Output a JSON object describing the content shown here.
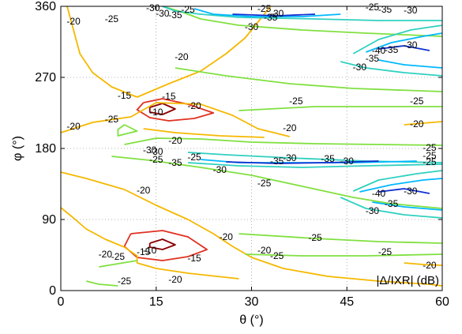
{
  "chart_data": {
    "type": "contour",
    "xlabel": "θ (°)",
    "ylabel": "φ (°)",
    "annotation": "|Δ/IXR| (dB)",
    "xlim": [
      0,
      60
    ],
    "ylim": [
      0,
      360
    ],
    "xticks": [
      0,
      15,
      30,
      45,
      60
    ],
    "yticks": [
      0,
      90,
      180,
      270,
      360
    ],
    "grid": "dotted",
    "level_colors": {
      "-10": "#8b0000",
      "-15": "#e03020",
      "-20": "#f5b800",
      "-25": "#80e040",
      "-30": "#30d0c0",
      "-35": "#00b8ff",
      "-40": "#1030d0"
    },
    "contours": [
      {
        "level": -10,
        "points": [
          [
            14,
            232
          ],
          [
            16,
            237
          ],
          [
            18,
            230
          ],
          [
            16,
            223
          ],
          [
            14,
            226
          ],
          [
            14,
            232
          ]
        ]
      },
      {
        "level": -10,
        "points": [
          [
            14,
            60
          ],
          [
            16,
            65
          ],
          [
            18,
            58
          ],
          [
            16,
            52
          ],
          [
            14,
            55
          ],
          [
            14,
            60
          ]
        ]
      },
      {
        "level": -15,
        "points": [
          [
            13,
            238
          ],
          [
            16,
            243
          ],
          [
            20,
            236
          ],
          [
            24,
            225
          ],
          [
            21,
            218
          ],
          [
            17,
            215
          ],
          [
            14,
            219
          ],
          [
            12,
            229
          ],
          [
            13,
            238
          ]
        ]
      },
      {
        "level": -15,
        "points": [
          [
            11,
            72
          ],
          [
            16,
            76
          ],
          [
            20,
            68
          ],
          [
            23,
            52
          ],
          [
            20,
            43
          ],
          [
            16,
            38
          ],
          [
            12,
            42
          ],
          [
            10,
            56
          ],
          [
            11,
            72
          ]
        ]
      },
      {
        "level": -20,
        "points": [
          [
            1,
            360
          ],
          [
            2,
            330
          ],
          [
            3,
            300
          ],
          [
            5,
            276
          ],
          [
            8,
            258
          ],
          [
            12,
            245
          ]
        ]
      },
      {
        "level": -20,
        "points": [
          [
            12,
            245
          ],
          [
            17,
            262
          ],
          [
            22,
            278
          ],
          [
            26,
            300
          ],
          [
            29,
            320
          ],
          [
            31,
            340
          ],
          [
            33,
            360
          ]
        ]
      },
      {
        "level": -20,
        "points": [
          [
            0,
            200
          ],
          [
            5,
            213
          ],
          [
            11,
            220
          ],
          [
            15,
            238
          ],
          [
            22,
            236
          ],
          [
            27,
            222
          ],
          [
            31,
            205
          ],
          [
            36,
            195
          ]
        ]
      },
      {
        "level": -20,
        "points": [
          [
            0,
            150
          ],
          [
            4,
            142
          ],
          [
            10,
            128
          ],
          [
            15,
            108
          ],
          [
            20,
            90
          ],
          [
            24,
            72
          ],
          [
            27,
            56
          ],
          [
            30,
            42
          ],
          [
            35,
            28
          ],
          [
            42,
            18
          ],
          [
            50,
            12
          ],
          [
            58,
            8
          ],
          [
            60,
            6
          ]
        ]
      },
      {
        "level": -20,
        "points": [
          [
            0,
            105
          ],
          [
            2,
            92
          ],
          [
            4,
            78
          ],
          [
            7,
            65
          ],
          [
            10,
            55
          ],
          [
            12,
            44
          ],
          [
            12,
            35
          ],
          [
            15,
            28
          ],
          [
            20,
            22
          ],
          [
            28,
            15
          ]
        ]
      },
      {
        "level": -20,
        "points": [
          [
            13,
            205
          ],
          [
            18,
            200
          ],
          [
            25,
            196
          ],
          [
            32,
            194
          ]
        ]
      },
      {
        "level": -20,
        "points": [
          [
            54,
            210
          ],
          [
            57,
            212
          ],
          [
            60,
            214
          ]
        ]
      },
      {
        "level": -20,
        "points": [
          [
            54,
            35
          ],
          [
            57,
            33
          ],
          [
            60,
            32
          ]
        ]
      },
      {
        "level": -25,
        "points": [
          [
            16,
            360
          ],
          [
            19,
            353
          ],
          [
            22,
            344
          ],
          [
            28,
            336
          ],
          [
            38,
            330
          ],
          [
            48,
            326
          ],
          [
            60,
            322
          ]
        ]
      },
      {
        "level": -25,
        "points": [
          [
            18,
            282
          ],
          [
            26,
            272
          ],
          [
            36,
            262
          ],
          [
            46,
            256
          ],
          [
            60,
            252
          ]
        ]
      },
      {
        "level": -25,
        "points": [
          [
            28,
            228
          ],
          [
            40,
            233
          ],
          [
            52,
            233
          ],
          [
            60,
            233
          ]
        ]
      },
      {
        "level": -25,
        "points": [
          [
            10,
            185
          ],
          [
            15,
            193
          ],
          [
            22,
            192
          ],
          [
            30,
            188
          ],
          [
            40,
            186
          ],
          [
            50,
            185
          ],
          [
            60,
            184
          ]
        ]
      },
      {
        "level": -25,
        "points": [
          [
            8,
            170
          ],
          [
            14,
            165
          ],
          [
            22,
            156
          ],
          [
            30,
            146
          ],
          [
            38,
            132
          ],
          [
            46,
            118
          ],
          [
            52,
            110
          ],
          [
            60,
            104
          ]
        ]
      },
      {
        "level": -25,
        "points": [
          [
            10,
            210
          ],
          [
            12,
            202
          ],
          [
            9,
            196
          ],
          [
            9,
            204
          ],
          [
            10,
            210
          ]
        ]
      },
      {
        "level": -25,
        "points": [
          [
            28,
            72
          ],
          [
            40,
            66
          ],
          [
            50,
            62
          ],
          [
            60,
            60
          ]
        ]
      },
      {
        "level": -25,
        "points": [
          [
            29,
            46
          ],
          [
            38,
            44
          ],
          [
            48,
            44
          ],
          [
            60,
            46
          ]
        ]
      },
      {
        "level": -25,
        "points": [
          [
            4,
            12
          ],
          [
            6,
            8
          ],
          [
            9,
            6
          ]
        ]
      },
      {
        "level": -25,
        "points": [
          [
            6,
            30
          ],
          [
            9,
            34
          ],
          [
            12,
            38
          ]
        ]
      },
      {
        "level": -30,
        "points": [
          [
            16,
            360
          ],
          [
            18,
            354
          ],
          [
            22,
            350
          ],
          [
            28,
            346
          ],
          [
            40,
            344
          ],
          [
            50,
            342
          ],
          [
            60,
            342
          ]
        ]
      },
      {
        "level": -30,
        "points": [
          [
            20,
            175
          ],
          [
            26,
            172
          ],
          [
            36,
            168
          ],
          [
            48,
            164
          ],
          [
            60,
            162
          ]
        ]
      },
      {
        "level": -30,
        "points": [
          [
            20,
            162
          ],
          [
            28,
            158
          ],
          [
            38,
            156
          ],
          [
            48,
            158
          ],
          [
            60,
            160
          ]
        ]
      },
      {
        "level": -30,
        "points": [
          [
            46,
            300
          ],
          [
            50,
            318
          ],
          [
            55,
            330
          ],
          [
            60,
            336
          ]
        ]
      },
      {
        "level": -30,
        "points": [
          [
            44,
            290
          ],
          [
            48,
            282
          ],
          [
            54,
            276
          ],
          [
            60,
            272
          ]
        ]
      },
      {
        "level": -30,
        "points": [
          [
            44,
            118
          ],
          [
            48,
            104
          ],
          [
            54,
            96
          ],
          [
            60,
            92
          ]
        ]
      },
      {
        "level": -30,
        "points": [
          [
            46,
            126
          ],
          [
            50,
            140
          ],
          [
            56,
            148
          ],
          [
            60,
            152
          ]
        ]
      },
      {
        "level": -35,
        "points": [
          [
            21,
            357
          ],
          [
            24,
            350
          ],
          [
            30,
            347
          ],
          [
            38,
            347
          ],
          [
            44,
            350
          ]
        ]
      },
      {
        "level": -35,
        "points": [
          [
            48,
            302
          ],
          [
            52,
            314
          ],
          [
            57,
            322
          ],
          [
            60,
            326
          ]
        ]
      },
      {
        "level": -35,
        "points": [
          [
            50,
            292
          ],
          [
            54,
            286
          ],
          [
            60,
            282
          ]
        ]
      },
      {
        "level": -35,
        "points": [
          [
            47,
            125
          ],
          [
            52,
            134
          ],
          [
            57,
            140
          ],
          [
            60,
            142
          ]
        ]
      },
      {
        "level": -35,
        "points": [
          [
            49,
            112
          ],
          [
            54,
            106
          ],
          [
            60,
            102
          ]
        ]
      },
      {
        "level": -35,
        "points": [
          [
            22,
            166
          ],
          [
            28,
            162
          ],
          [
            36,
            162
          ],
          [
            46,
            162
          ],
          [
            56,
            164
          ]
        ]
      },
      {
        "level": -40,
        "points": [
          [
            27,
            350
          ],
          [
            34,
            348
          ],
          [
            40,
            350
          ]
        ]
      },
      {
        "level": -40,
        "points": [
          [
            26,
            163
          ],
          [
            34,
            161
          ],
          [
            42,
            162
          ],
          [
            50,
            164
          ]
        ]
      },
      {
        "level": -40,
        "points": [
          [
            50,
            306
          ],
          [
            54,
            310
          ],
          [
            58,
            304
          ]
        ]
      },
      {
        "level": -40,
        "points": [
          [
            50,
            125
          ],
          [
            54,
            129
          ],
          [
            58,
            123
          ]
        ]
      }
    ],
    "contour_labels": [
      {
        "text": "-30",
        "x": 14.5,
        "y": 357
      },
      {
        "text": "-25",
        "x": 20,
        "y": 355
      },
      {
        "text": "-30",
        "x": 16,
        "y": 350
      },
      {
        "text": "-35",
        "x": 18,
        "y": 348
      },
      {
        "text": "-20",
        "x": 2,
        "y": 340
      },
      {
        "text": "-25",
        "x": 8,
        "y": 343
      },
      {
        "text": "-25",
        "x": 32,
        "y": 356
      },
      {
        "text": "-30",
        "x": 34,
        "y": 350
      },
      {
        "text": "-35",
        "x": 33,
        "y": 345
      },
      {
        "text": "-30",
        "x": 30,
        "y": 333
      },
      {
        "text": "-25",
        "x": 49,
        "y": 358
      },
      {
        "text": "-35",
        "x": 51,
        "y": 355
      },
      {
        "text": "-30",
        "x": 55,
        "y": 354
      },
      {
        "text": "-20",
        "x": 19,
        "y": 295
      },
      {
        "text": "-40",
        "x": 50,
        "y": 303
      },
      {
        "text": "-35",
        "x": 52,
        "y": 304
      },
      {
        "text": "-30",
        "x": 55,
        "y": 310
      },
      {
        "text": "-35",
        "x": 49,
        "y": 293
      },
      {
        "text": "-30",
        "x": 47,
        "y": 282
      },
      {
        "text": "-15",
        "x": 10,
        "y": 246
      },
      {
        "text": "-15",
        "x": 17,
        "y": 245
      },
      {
        "text": "-10",
        "x": 15,
        "y": 225
      },
      {
        "text": "-20",
        "x": 21,
        "y": 233
      },
      {
        "text": "-25",
        "x": 8,
        "y": 216
      },
      {
        "text": "-20",
        "x": 2,
        "y": 207
      },
      {
        "text": "-25",
        "x": 37,
        "y": 239
      },
      {
        "text": "-25",
        "x": 56,
        "y": 239
      },
      {
        "text": "-20",
        "x": 36,
        "y": 205
      },
      {
        "text": "-20",
        "x": 56,
        "y": 210
      },
      {
        "text": "-20",
        "x": 18,
        "y": 189
      },
      {
        "text": "-30",
        "x": 14,
        "y": 177
      },
      {
        "text": "-25",
        "x": 15,
        "y": 165
      },
      {
        "text": "-35",
        "x": 18,
        "y": 161
      },
      {
        "text": "-25",
        "x": 21,
        "y": 168
      },
      {
        "text": "-30",
        "x": 25,
        "y": 152
      },
      {
        "text": "-35",
        "x": 34,
        "y": 163
      },
      {
        "text": "-30",
        "x": 36,
        "y": 167
      },
      {
        "text": "-35",
        "x": 42,
        "y": 166
      },
      {
        "text": "-30",
        "x": 45,
        "y": 163
      },
      {
        "text": "-25",
        "x": 58,
        "y": 180
      },
      {
        "text": "-25",
        "x": 58,
        "y": 170
      },
      {
        "text": "-25",
        "x": 58,
        "y": 162
      },
      {
        "text": "-25",
        "x": 32,
        "y": 135
      },
      {
        "text": "-20",
        "x": 13,
        "y": 126
      },
      {
        "text": "-40",
        "x": 50,
        "y": 122
      },
      {
        "text": "-30",
        "x": 55,
        "y": 125
      },
      {
        "text": "-35",
        "x": 52,
        "y": 109
      },
      {
        "text": "-30",
        "x": 49,
        "y": 100
      },
      {
        "text": "-20",
        "x": 26,
        "y": 67
      },
      {
        "text": "-25",
        "x": 40,
        "y": 66
      },
      {
        "text": "-25",
        "x": 51,
        "y": 48
      },
      {
        "text": "-20",
        "x": 58,
        "y": 31
      },
      {
        "text": "-20",
        "x": 7,
        "y": 45
      },
      {
        "text": "-25",
        "x": 9,
        "y": 42
      },
      {
        "text": "-15",
        "x": 13,
        "y": 48
      },
      {
        "text": "-10",
        "x": 14,
        "y": 50
      },
      {
        "text": "-15",
        "x": 21,
        "y": 40
      },
      {
        "text": "-20",
        "x": 32,
        "y": 50
      },
      {
        "text": "-25",
        "x": 34,
        "y": 43
      },
      {
        "text": "-20",
        "x": 18,
        "y": 13
      },
      {
        "text": "-25",
        "x": 10,
        "y": 11
      },
      {
        "text": "-30",
        "x": 15,
        "y": 175
      }
    ]
  }
}
